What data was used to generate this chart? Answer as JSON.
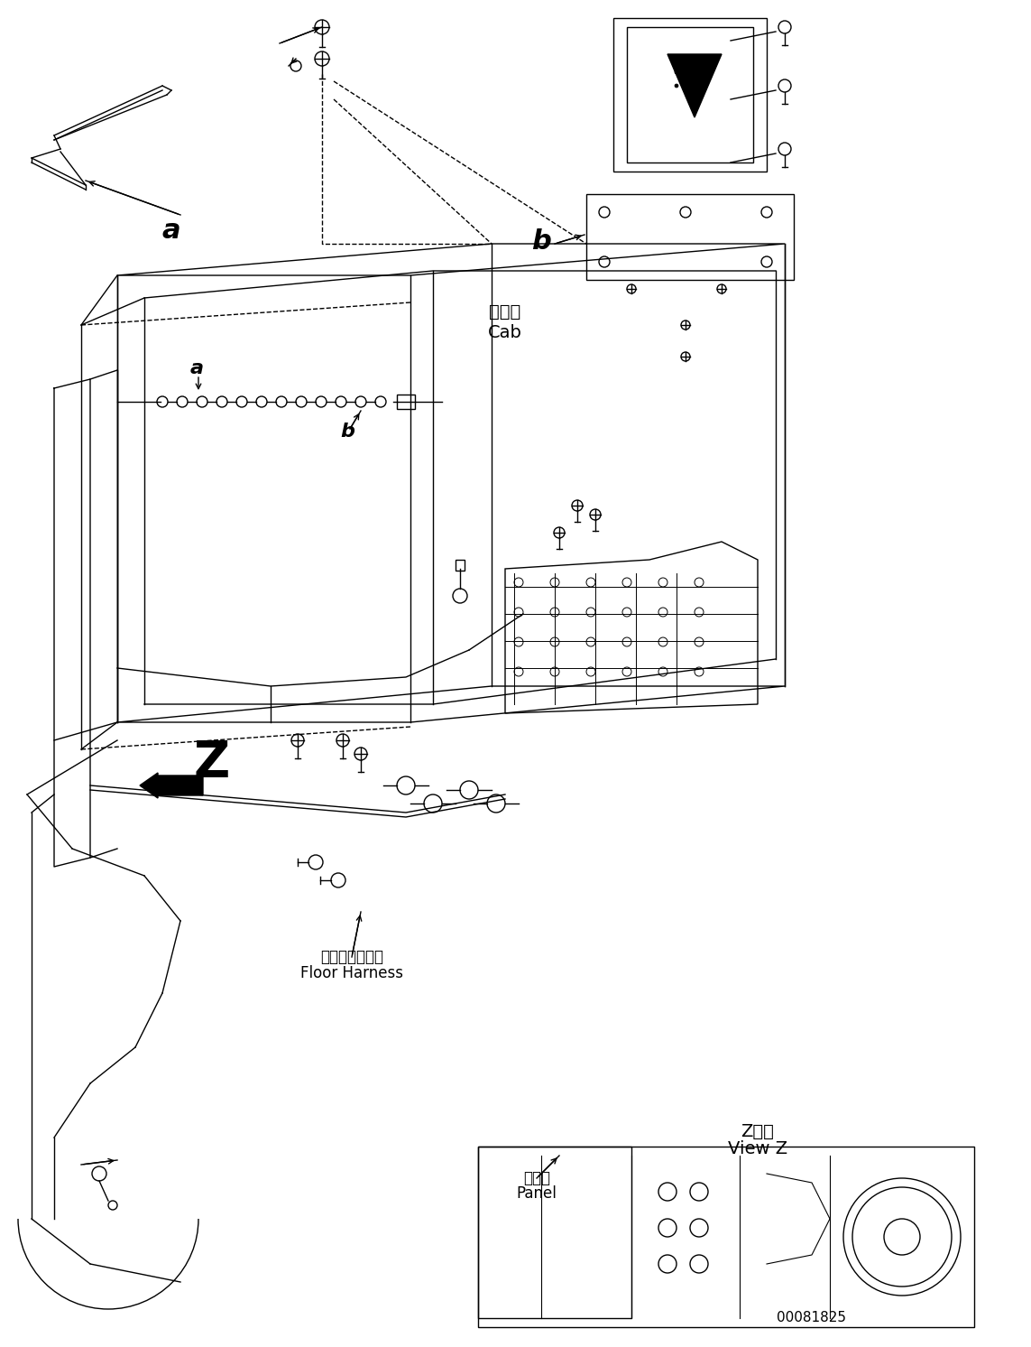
{
  "title": "",
  "background_color": "#ffffff",
  "line_color": "#000000",
  "fig_width": 11.43,
  "fig_height": 14.92,
  "dpi": 100,
  "part_number": "00081825",
  "labels": {
    "a_top": "a",
    "b_top": "b",
    "a_mid": "a",
    "b_mid": "b",
    "cab_jp": "キャブ",
    "cab_en": "Cab",
    "floor_harness_jp": "フロアハーネス",
    "floor_harness_en": "Floor Harness",
    "panel_jp": "パネル",
    "panel_en": "Panel",
    "z_label": "Z",
    "view_z_jp": "Z　視",
    "view_z_en": "View Z"
  }
}
